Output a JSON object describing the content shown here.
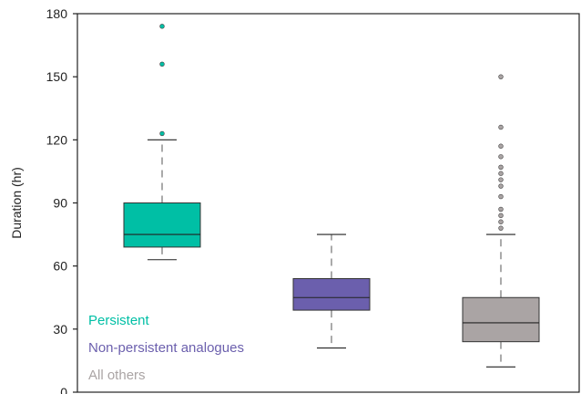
{
  "chart_data": {
    "type": "box",
    "title": "",
    "xlabel": "",
    "ylabel": "Duration (hr)",
    "ylim": [
      0,
      180
    ],
    "yticks": [
      0,
      30,
      60,
      90,
      120,
      150,
      180
    ],
    "grid": false,
    "legend_placement": "bottom-left",
    "series": [
      {
        "name": "Persistent",
        "color": "#00bfa5",
        "whisker_low": 63,
        "q1": 69,
        "median": 75,
        "q3": 90,
        "whisker_high": 120,
        "outliers": [
          123,
          156,
          174
        ]
      },
      {
        "name": "Non-persistent analogues",
        "color": "#6b5fad",
        "whisker_low": 21,
        "q1": 39,
        "median": 45,
        "q3": 54,
        "whisker_high": 75,
        "outliers": []
      },
      {
        "name": "All others",
        "color": "#aaa4a4",
        "whisker_low": 12,
        "q1": 24,
        "median": 33,
        "q3": 45,
        "whisker_high": 75,
        "outliers": [
          78,
          81,
          84,
          87,
          93,
          98,
          101,
          104,
          107,
          112,
          117,
          126,
          150
        ]
      }
    ]
  }
}
